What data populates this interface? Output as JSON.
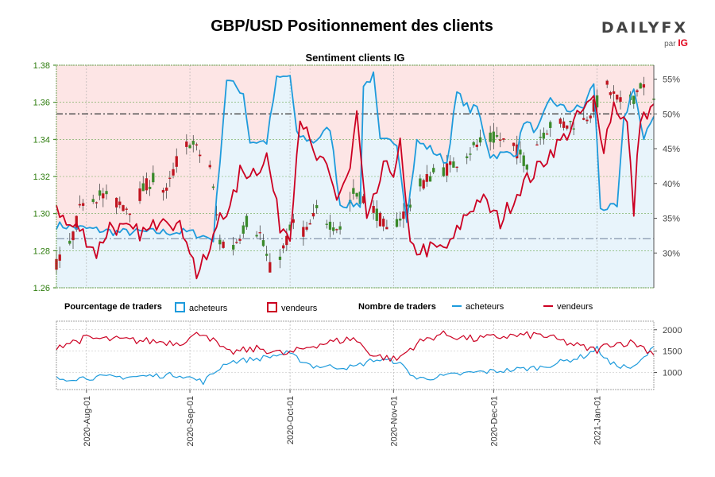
{
  "title": "GBP/USD Positionnement des clients",
  "logo": {
    "brand_main": "DAILY",
    "brand_fx": "FX",
    "par": "par",
    "ig": "IG"
  },
  "legend": {
    "pct_label": "Pourcentage de traders",
    "nb_label": "Nombre de traders",
    "buyers": "acheteurs",
    "sellers": "vendeurs"
  },
  "colors": {
    "buy": "#1e9bdc",
    "sell": "#cc0022",
    "buy_fill": "#e8f4fb",
    "sell_fill": "#fde5e5",
    "candle_up": "#3a8a2a",
    "candle_down": "#c0141f",
    "left_axis_text": "#2e7d0e",
    "right_axis_text": "#444444"
  },
  "chart_data": [
    {
      "type": "line",
      "subtitle": "Sentiment clients IG",
      "price_axis": {
        "ylim": [
          1.26,
          1.38
        ],
        "ticks": [
          "1.26",
          "1.28",
          "1.30",
          "1.32",
          "1.34",
          "1.36",
          "1.38"
        ]
      },
      "percent_axis": {
        "ylim": [
          25,
          57
        ],
        "ticks": [
          "30%",
          "35%",
          "40%",
          "45%",
          "50%",
          "55%"
        ]
      },
      "reference_lines": {
        "percent": 50,
        "price": 1.2865
      },
      "date_range": [
        "2020-07-23",
        "2021-01-18"
      ],
      "price_anchors": [
        [
          "2020-07-23",
          1.273
        ],
        [
          "2020-07-27",
          1.282
        ],
        [
          "2020-07-31",
          1.308
        ],
        [
          "2020-08-05",
          1.31
        ],
        [
          "2020-08-10",
          1.306
        ],
        [
          "2020-08-14",
          1.303
        ],
        [
          "2020-08-18",
          1.313
        ],
        [
          "2020-08-21",
          1.319
        ],
        [
          "2020-08-25",
          1.311
        ],
        [
          "2020-08-28",
          1.328
        ],
        [
          "2020-09-01",
          1.339
        ],
        [
          "2020-09-04",
          1.332
        ],
        [
          "2020-09-07",
          1.326
        ],
        [
          "2020-09-10",
          1.285
        ],
        [
          "2020-09-14",
          1.282
        ],
        [
          "2020-09-18",
          1.296
        ],
        [
          "2020-09-22",
          1.289
        ],
        [
          "2020-09-25",
          1.27
        ],
        [
          "2020-09-29",
          1.281
        ],
        [
          "2020-10-02",
          1.295
        ],
        [
          "2020-10-06",
          1.29
        ],
        [
          "2020-10-09",
          1.301
        ],
        [
          "2020-10-13",
          1.295
        ],
        [
          "2020-10-16",
          1.292
        ],
        [
          "2020-10-20",
          1.311
        ],
        [
          "2020-10-23",
          1.308
        ],
        [
          "2020-10-27",
          1.3
        ],
        [
          "2020-10-30",
          1.29
        ],
        [
          "2020-11-04",
          1.3
        ],
        [
          "2020-11-09",
          1.315
        ],
        [
          "2020-11-13",
          1.322
        ],
        [
          "2020-11-18",
          1.325
        ],
        [
          "2020-11-23",
          1.333
        ],
        [
          "2020-11-27",
          1.338
        ],
        [
          "2020-12-02",
          1.341
        ],
        [
          "2020-12-07",
          1.336
        ],
        [
          "2020-12-11",
          1.327
        ],
        [
          "2020-12-15",
          1.342
        ],
        [
          "2020-12-18",
          1.348
        ],
        [
          "2020-12-22",
          1.348
        ],
        [
          "2020-12-28",
          1.35
        ],
        [
          "2021-01-04",
          1.368
        ],
        [
          "2021-01-08",
          1.359
        ],
        [
          "2021-01-12",
          1.363
        ],
        [
          "2021-01-14",
          1.37
        ],
        [
          "2021-01-18",
          1.36
        ]
      ],
      "series": [
        {
          "name": "acheteurs",
          "anchors_percent": [
            [
              "2020-07-23",
              34.0
            ],
            [
              "2020-08-10",
              33.0
            ],
            [
              "2020-09-01",
              33.0
            ],
            [
              "2020-09-08",
              32.0
            ],
            [
              "2020-09-12",
              55.0
            ],
            [
              "2020-09-17",
              53.0
            ],
            [
              "2020-09-19",
              46.0
            ],
            [
              "2020-09-24",
              46.0
            ],
            [
              "2020-09-27",
              55.0
            ],
            [
              "2020-10-01",
              55.5
            ],
            [
              "2020-10-03",
              47.0
            ],
            [
              "2020-10-08",
              46.0
            ],
            [
              "2020-10-13",
              48.0
            ],
            [
              "2020-10-16",
              37.0
            ],
            [
              "2020-10-22",
              37.0
            ],
            [
              "2020-10-23",
              54.0
            ],
            [
              "2020-10-26",
              55.5
            ],
            [
              "2020-10-28",
              46.0
            ],
            [
              "2020-11-02",
              46.0
            ],
            [
              "2020-11-05",
              35.0
            ],
            [
              "2020-11-08",
              46.0
            ],
            [
              "2020-11-12",
              45.0
            ],
            [
              "2020-11-17",
              43.0
            ],
            [
              "2020-11-20",
              53.0
            ],
            [
              "2020-11-24",
              50.5
            ],
            [
              "2020-11-26",
              51.0
            ],
            [
              "2020-11-30",
              44.0
            ],
            [
              "2020-12-08",
              44.5
            ],
            [
              "2020-12-10",
              49.0
            ],
            [
              "2020-12-14",
              47.5
            ],
            [
              "2020-12-18",
              52.0
            ],
            [
              "2020-12-23",
              50.5
            ],
            [
              "2020-12-28",
              51.0
            ],
            [
              "2020-12-31",
              54.5
            ],
            [
              "2021-01-02",
              36.5
            ],
            [
              "2021-01-07",
              36.5
            ],
            [
              "2021-01-09",
              49.0
            ],
            [
              "2021-01-12",
              54.0
            ],
            [
              "2021-01-15",
              46.0
            ],
            [
              "2021-01-18",
              50.0
            ]
          ]
        },
        {
          "name": "vendeurs",
          "anchors_percent": [
            [
              "2020-07-23",
              37.0
            ],
            [
              "2020-07-26",
              34.0
            ],
            [
              "2020-07-30",
              33.5
            ],
            [
              "2020-08-04",
              30.0
            ],
            [
              "2020-08-08",
              34.0
            ],
            [
              "2020-08-14",
              33.0
            ],
            [
              "2020-08-20",
              33.0
            ],
            [
              "2020-08-24",
              36.0
            ],
            [
              "2020-08-28",
              34.0
            ],
            [
              "2020-08-31",
              32.5
            ],
            [
              "2020-09-03",
              27.0
            ],
            [
              "2020-09-07",
              30.0
            ],
            [
              "2020-09-10",
              36.0
            ],
            [
              "2020-09-13",
              36.0
            ],
            [
              "2020-09-16",
              41.5
            ],
            [
              "2020-09-21",
              42.0
            ],
            [
              "2020-09-24",
              44.0
            ],
            [
              "2020-09-28",
              34.0
            ],
            [
              "2020-10-01",
              33.0
            ],
            [
              "2020-10-04",
              50.0
            ],
            [
              "2020-10-08",
              44.0
            ],
            [
              "2020-10-12",
              42.0
            ],
            [
              "2020-10-15",
              38.0
            ],
            [
              "2020-10-19",
              42.0
            ],
            [
              "2020-10-21",
              50.0
            ],
            [
              "2020-10-24",
              34.0
            ],
            [
              "2020-10-29",
              42.0
            ],
            [
              "2020-11-01",
              42.0
            ],
            [
              "2020-11-03",
              45.5
            ],
            [
              "2020-11-06",
              30.5
            ],
            [
              "2020-11-10",
              30.5
            ],
            [
              "2020-11-14",
              30.5
            ],
            [
              "2020-11-18",
              31.0
            ],
            [
              "2020-11-22",
              35.0
            ],
            [
              "2020-11-27",
              38.0
            ],
            [
              "2020-12-03",
              34.5
            ],
            [
              "2020-12-09",
              39.5
            ],
            [
              "2020-12-14",
              42.0
            ],
            [
              "2020-12-18",
              44.5
            ],
            [
              "2020-12-22",
              46.5
            ],
            [
              "2020-12-27",
              50.0
            ],
            [
              "2020-12-31",
              52.0
            ],
            [
              "2021-01-03",
              45.5
            ],
            [
              "2021-01-06",
              51.5
            ],
            [
              "2021-01-10",
              48.5
            ],
            [
              "2021-01-12",
              36.0
            ],
            [
              "2021-01-14",
              50.0
            ],
            [
              "2021-01-16",
              49.5
            ],
            [
              "2021-01-18",
              51.0
            ]
          ]
        }
      ]
    },
    {
      "type": "line",
      "ylim": [
        600,
        2200
      ],
      "ticks": [
        "1000",
        "1500",
        "2000"
      ],
      "series": [
        {
          "name": "acheteurs",
          "anchors": [
            [
              "2020-07-23",
              850
            ],
            [
              "2020-08-01",
              880
            ],
            [
              "2020-08-15",
              900
            ],
            [
              "2020-08-29",
              950
            ],
            [
              "2020-09-05",
              780
            ],
            [
              "2020-09-12",
              1240
            ],
            [
              "2020-09-22",
              1330
            ],
            [
              "2020-09-30",
              1450
            ],
            [
              "2020-10-08",
              1150
            ],
            [
              "2020-10-20",
              1120
            ],
            [
              "2020-10-26",
              1300
            ],
            [
              "2020-11-02",
              1260
            ],
            [
              "2020-11-08",
              850
            ],
            [
              "2020-11-15",
              900
            ],
            [
              "2020-11-25",
              1000
            ],
            [
              "2020-12-05",
              1050
            ],
            [
              "2020-12-15",
              1120
            ],
            [
              "2020-12-28",
              1380
            ],
            [
              "2021-01-01",
              1560
            ],
            [
              "2021-01-05",
              1200
            ],
            [
              "2021-01-12",
              1100
            ],
            [
              "2021-01-18",
              1580
            ]
          ]
        },
        {
          "name": "vendeurs",
          "anchors": [
            [
              "2020-07-23",
              1620
            ],
            [
              "2020-08-01",
              1800
            ],
            [
              "2020-08-15",
              1750
            ],
            [
              "2020-08-29",
              1700
            ],
            [
              "2020-09-05",
              1950
            ],
            [
              "2020-09-12",
              1460
            ],
            [
              "2020-09-22",
              1560
            ],
            [
              "2020-09-30",
              1420
            ],
            [
              "2020-10-08",
              1640
            ],
            [
              "2020-10-20",
              1800
            ],
            [
              "2020-10-26",
              1400
            ],
            [
              "2020-11-02",
              1300
            ],
            [
              "2020-11-08",
              1680
            ],
            [
              "2020-11-15",
              1900
            ],
            [
              "2020-11-25",
              1780
            ],
            [
              "2020-12-05",
              1850
            ],
            [
              "2020-12-15",
              1880
            ],
            [
              "2020-12-28",
              1580
            ],
            [
              "2021-01-01",
              1520
            ],
            [
              "2021-01-05",
              1680
            ],
            [
              "2021-01-12",
              1700
            ],
            [
              "2021-01-18",
              1450
            ]
          ]
        }
      ]
    }
  ],
  "x_ticks": [
    {
      "label": "2020-Aug-01",
      "date": "2020-08-01"
    },
    {
      "label": "2020-Sep-01",
      "date": "2020-09-01"
    },
    {
      "label": "2020-Oct-01",
      "date": "2020-10-01"
    },
    {
      "label": "2020-Nov-01",
      "date": "2020-11-01"
    },
    {
      "label": "2020-Dec-01",
      "date": "2020-12-01"
    },
    {
      "label": "2021-Jan-01",
      "date": "2021-01-01"
    }
  ]
}
